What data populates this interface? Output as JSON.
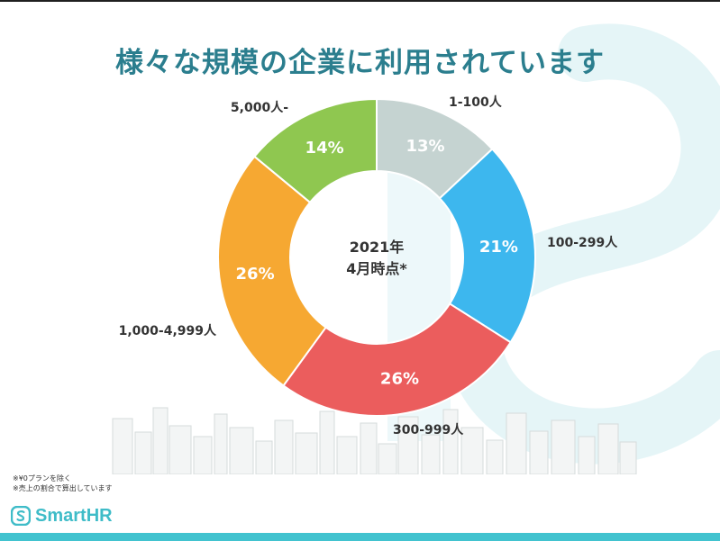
{
  "title": "様々な規模の企業に利用されています",
  "chart_data": {
    "type": "pie",
    "center_label": [
      "2021年",
      "4月時点*"
    ],
    "slices": [
      {
        "label": "1-100人",
        "value": 13,
        "value_label": "13%",
        "color": "#c5d3d1"
      },
      {
        "label": "100-299人",
        "value": 21,
        "value_label": "21%",
        "color": "#3db7ee"
      },
      {
        "label": "300-999人",
        "value": 26,
        "value_label": "26%",
        "color": "#eb5d5d"
      },
      {
        "label": "1,000-4,999人",
        "value": 26,
        "value_label": "26%",
        "color": "#f6a832"
      },
      {
        "label": "5,000人-",
        "value": 14,
        "value_label": "14%",
        "color": "#8fc750"
      }
    ]
  },
  "footnotes": [
    "※¥0プランを除く",
    "※売上の割合で算出しています"
  ],
  "brand": {
    "name": "SmartHR",
    "color": "#3fbcc8",
    "icon": "smarthr-logo-icon"
  }
}
